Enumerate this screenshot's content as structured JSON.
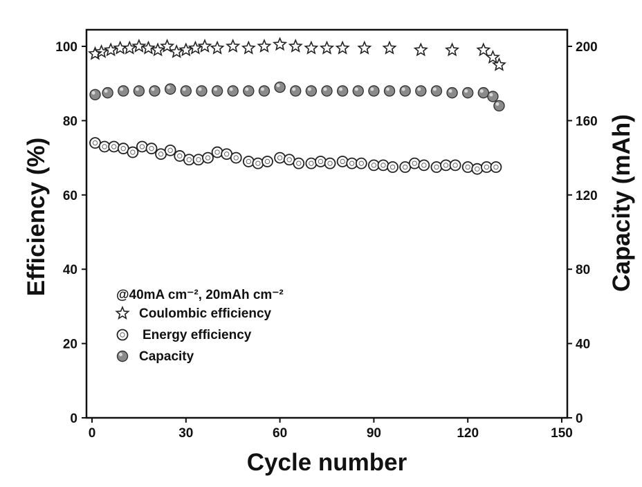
{
  "chart_data": {
    "type": "scatter",
    "xlabel": "Cycle number",
    "ylabel_left": "Efficiency (%)",
    "ylabel_right": "Capacity (mAh)",
    "xlim": [
      0,
      150
    ],
    "ylim_left": [
      0,
      100
    ],
    "ylim_right": [
      0,
      200
    ],
    "x_ticks": [
      "0",
      "30",
      "60",
      "90",
      "120",
      "150"
    ],
    "y_left_ticks": [
      "0",
      "20",
      "40",
      "60",
      "80",
      "100"
    ],
    "y_right_ticks": [
      "0",
      "40",
      "80",
      "120",
      "160",
      "200"
    ],
    "grid": false,
    "legend_position": "bottom-left",
    "legend_header": "@40mA cm⁻², 20mAh cm⁻²",
    "series": [
      {
        "name": "Coulombic efficiency",
        "axis": "left",
        "marker": "star-open",
        "x": [
          1,
          3,
          6,
          9,
          12,
          15,
          18,
          21,
          24,
          27,
          30,
          33,
          36,
          40,
          45,
          50,
          55,
          60,
          65,
          70,
          75,
          80,
          87,
          95,
          105,
          115,
          125,
          128,
          130
        ],
        "y": [
          98,
          98.5,
          99,
          99.5,
          99.5,
          100,
          99.5,
          99,
          100,
          98.5,
          99,
          99.5,
          100,
          99.5,
          100,
          99.5,
          100,
          100.5,
          100,
          99.5,
          99.5,
          99.5,
          99.5,
          99.5,
          99,
          99,
          99,
          97,
          95
        ]
      },
      {
        "name": "Energy efficiency",
        "axis": "left",
        "marker": "circle-open",
        "x": [
          1,
          4,
          7,
          10,
          13,
          16,
          19,
          22,
          25,
          28,
          31,
          34,
          37,
          40,
          43,
          46,
          50,
          53,
          56,
          60,
          63,
          66,
          70,
          73,
          76,
          80,
          83,
          86,
          90,
          93,
          96,
          100,
          103,
          106,
          110,
          113,
          116,
          120,
          123,
          126,
          129
        ],
        "y": [
          74,
          73,
          73,
          72.5,
          71.5,
          73,
          72.5,
          71,
          72,
          70.5,
          69.5,
          69.5,
          70,
          71.5,
          71,
          70,
          69,
          68.5,
          69,
          70,
          69.5,
          68.5,
          68.5,
          69,
          68.5,
          69,
          68.5,
          68.5,
          68,
          68,
          67.5,
          67.5,
          68.5,
          68,
          67.5,
          68,
          68,
          67.5,
          67,
          67.5,
          67.5
        ]
      },
      {
        "name": "Capacity",
        "axis": "right",
        "marker": "circle-filled",
        "x": [
          1,
          5,
          10,
          15,
          20,
          25,
          30,
          35,
          40,
          45,
          50,
          55,
          60,
          65,
          70,
          75,
          80,
          85,
          90,
          95,
          100,
          105,
          110,
          115,
          120,
          125,
          128,
          130
        ],
        "y": [
          174,
          175,
          176,
          176,
          176,
          177,
          176,
          176,
          176,
          176,
          176,
          176,
          178,
          176,
          176,
          176,
          176,
          176,
          176,
          176,
          176,
          176,
          176,
          175,
          175,
          175,
          173,
          168
        ]
      }
    ]
  }
}
